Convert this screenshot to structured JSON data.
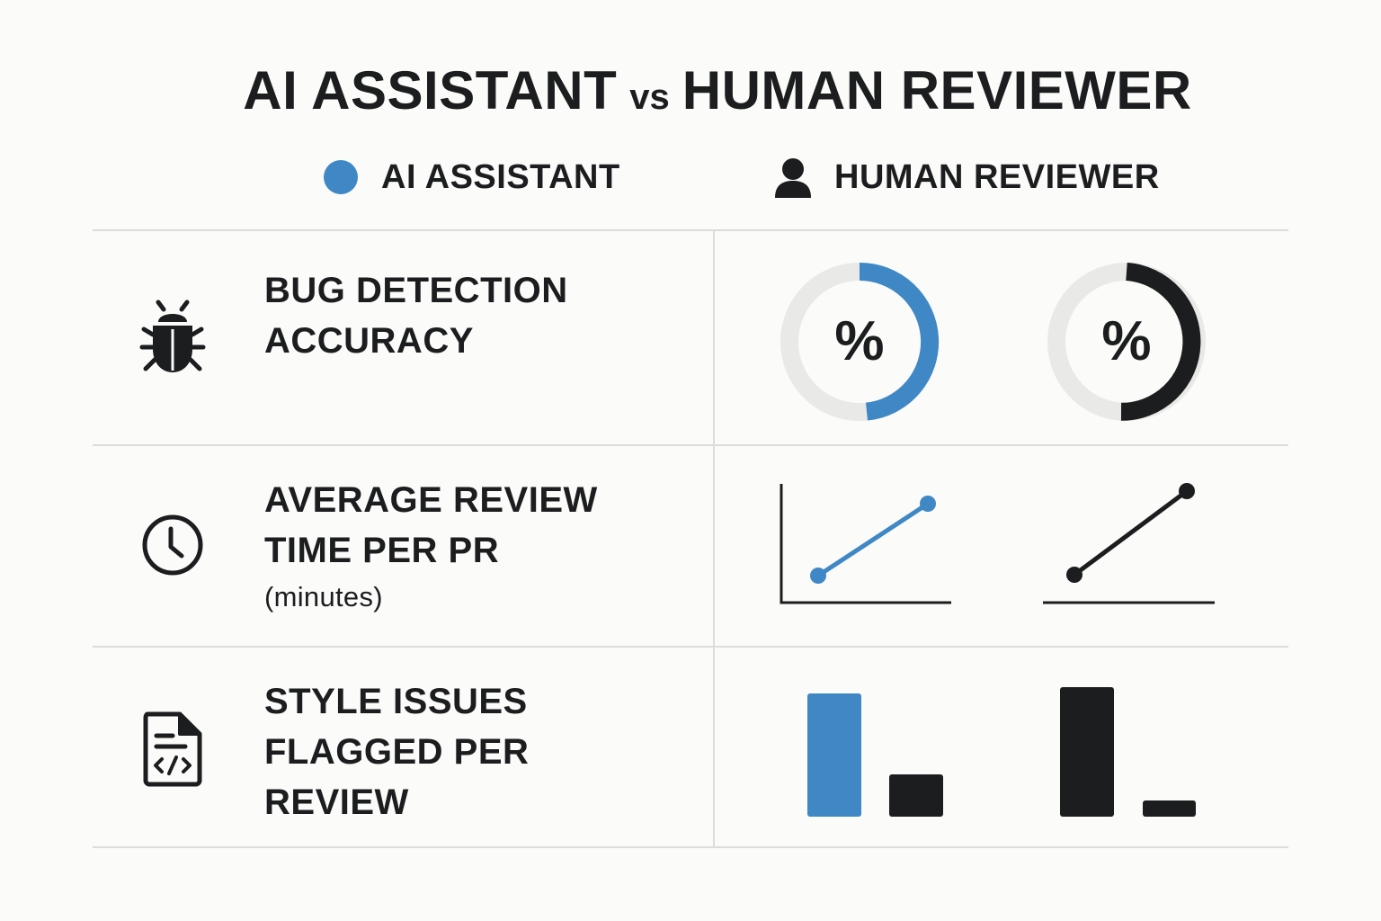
{
  "title": {
    "part1": "AI ASSISTANT",
    "vs": "vs",
    "part2": "HUMAN REVIEWER"
  },
  "legend": {
    "ai": {
      "label": "AI ASSISTANT",
      "color": "#3f88c5",
      "icon": "circle-dot-icon"
    },
    "human": {
      "label": "HUMAN REVIEWER",
      "color": "#1c1d1f",
      "icon": "person-icon"
    }
  },
  "rows": [
    {
      "icon": "bug-icon",
      "label_line1": "BUG DETECTION",
      "label_line2": "ACCURACY",
      "visual": "donut",
      "symbol": "%",
      "ai_fraction": 0.47,
      "human_fraction": 0.48
    },
    {
      "icon": "clock-icon",
      "label_line1": "AVERAGE REVIEW",
      "label_line2": "TIME PER PR",
      "unit": "(minutes)",
      "visual": "line"
    },
    {
      "icon": "code-file-icon",
      "label_line1": "STYLE ISSUES",
      "label_line2": "FLAGGED PER",
      "label_line3": "REVIEW",
      "visual": "bar"
    }
  ],
  "colors": {
    "ai": "#3f88c5",
    "human": "#1c1d1f",
    "track": "#e9e9e7",
    "grid": "#dcdcdc"
  }
}
